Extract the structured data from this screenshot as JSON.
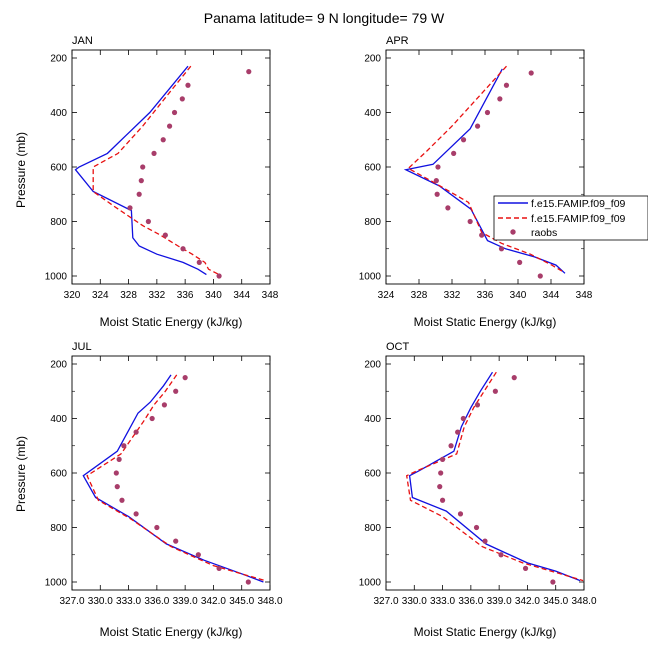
{
  "title": "Panama  latitude= 9 N longitude= 79 W",
  "legend": {
    "entries": [
      {
        "label": "f.e15.FAMIP.f09_f09",
        "style": "solid-blue-line"
      },
      {
        "label": "f.e15.FAMIP.f09_f09",
        "style": "dashed-red-line"
      },
      {
        "label": "raobs",
        "style": "purple-dot"
      }
    ]
  },
  "colors": {
    "model_solid": "#1010e0",
    "model_dashed": "#e81010",
    "raobs": "#a83d6a"
  },
  "chart_data": [
    {
      "type": "line",
      "panel": "JAN",
      "title": "JAN",
      "xlabel": "Moist Static Energy (kJ/kg)",
      "ylabel": "Pressure (mb)",
      "xlim": [
        320,
        348
      ],
      "ylim": [
        200,
        1000
      ],
      "y_inverted": true,
      "xticks": [
        320,
        324,
        328,
        332,
        336,
        340,
        344,
        348
      ],
      "xtick_labels": [
        "320",
        "324",
        "328",
        "332",
        "336",
        "340",
        "344",
        "348"
      ],
      "yticks": [
        200,
        400,
        600,
        800,
        1000
      ],
      "ytick_labels": [
        "200",
        "400",
        "600",
        "800",
        "1000"
      ],
      "series": [
        {
          "name": "f.e15.FAMIP.f09_f09",
          "style": "solid",
          "points": [
            [
              336.4,
              230
            ],
            [
              331,
              400
            ],
            [
              325,
              550
            ],
            [
              321,
              600
            ],
            [
              320.5,
              610
            ],
            [
              323,
              690
            ],
            [
              328.4,
              760
            ],
            [
              328.6,
              860
            ],
            [
              329.5,
              890
            ],
            [
              332,
              920
            ],
            [
              335.7,
              950
            ],
            [
              337.8,
              975
            ],
            [
              339,
              995
            ]
          ]
        },
        {
          "name": "f.e15.FAMIP.f09_f09",
          "style": "dashed",
          "points": [
            [
              336.8,
              230
            ],
            [
              334,
              320
            ],
            [
              330,
              450
            ],
            [
              326.5,
              550
            ],
            [
              323,
              600
            ],
            [
              323,
              690
            ],
            [
              326,
              745
            ],
            [
              330,
              815
            ],
            [
              332.5,
              850
            ],
            [
              335,
              890
            ],
            [
              337,
              920
            ],
            [
              338.8,
              950
            ],
            [
              339.3,
              975
            ],
            [
              340.8,
              995
            ]
          ]
        },
        {
          "name": "raobs",
          "style": "dots",
          "points": [
            [
              345,
              250
            ],
            [
              336.4,
              300
            ],
            [
              335.6,
              350
            ],
            [
              334.5,
              400
            ],
            [
              333.8,
              450
            ],
            [
              332.9,
              500
            ],
            [
              331.6,
              550
            ],
            [
              330,
              600
            ],
            [
              329.8,
              650
            ],
            [
              329.5,
              700
            ],
            [
              328.2,
              750
            ],
            [
              330.8,
              800
            ],
            [
              333.2,
              850
            ],
            [
              335.7,
              900
            ],
            [
              338,
              950
            ],
            [
              340.8,
              1000
            ]
          ]
        }
      ]
    },
    {
      "type": "line",
      "panel": "APR",
      "title": "APR",
      "xlabel": "Moist Static Energy (kJ/kg)",
      "ylabel": "",
      "xlim": [
        324,
        348
      ],
      "ylim": [
        200,
        1000
      ],
      "y_inverted": true,
      "xticks": [
        324,
        328,
        332,
        336,
        340,
        344,
        348
      ],
      "xtick_labels": [
        "324",
        "328",
        "332",
        "336",
        "340",
        "344",
        "348"
      ],
      "yticks": [
        200,
        400,
        600,
        800,
        1000
      ],
      "ytick_labels": [
        "200",
        "400",
        "600",
        "800",
        "1000"
      ],
      "series": [
        {
          "name": "f.e15.FAMIP.f09_f09",
          "style": "solid",
          "points": [
            [
              338.1,
              240
            ],
            [
              334.2,
              460
            ],
            [
              329.7,
              590
            ],
            [
              326.4,
              610
            ],
            [
              330.5,
              670
            ],
            [
              334.3,
              755
            ],
            [
              336.3,
              870
            ],
            [
              338.5,
              900
            ],
            [
              342,
              930
            ],
            [
              344.6,
              960
            ],
            [
              345.7,
              990
            ]
          ]
        },
        {
          "name": "f.e15.FAMIP.f09_f09",
          "style": "dashed",
          "points": [
            [
              338.6,
              230
            ],
            [
              332,
              450
            ],
            [
              329,
              540
            ],
            [
              326.7,
              605
            ],
            [
              330,
              660
            ],
            [
              334,
              730
            ],
            [
              335.6,
              840
            ],
            [
              338,
              880
            ],
            [
              341.5,
              920
            ],
            [
              344.1,
              960
            ],
            [
              345.5,
              985
            ]
          ]
        },
        {
          "name": "raobs",
          "style": "dots",
          "points": [
            [
              341.6,
              255
            ],
            [
              338.6,
              300
            ],
            [
              337.8,
              350
            ],
            [
              336.3,
              400
            ],
            [
              335.1,
              450
            ],
            [
              333.4,
              500
            ],
            [
              332.2,
              550
            ],
            [
              330.3,
              600
            ],
            [
              330.1,
              650
            ],
            [
              330.2,
              700
            ],
            [
              331.5,
              750
            ],
            [
              334.2,
              800
            ],
            [
              335.6,
              850
            ],
            [
              338,
              900
            ],
            [
              340.2,
              950
            ],
            [
              342.7,
              1000
            ]
          ]
        }
      ]
    },
    {
      "type": "line",
      "panel": "JUL",
      "title": "JUL",
      "xlabel": "Moist Static Energy (kJ/kg)",
      "ylabel": "Pressure (mb)",
      "xlim": [
        327,
        348
      ],
      "ylim": [
        200,
        1000
      ],
      "y_inverted": true,
      "xticks": [
        327,
        330,
        333,
        336,
        339,
        342,
        345,
        348
      ],
      "xtick_labels": [
        "327.0",
        "330.0",
        "333.0",
        "336.0",
        "339.0",
        "342.0",
        "345.0",
        "348.0"
      ],
      "yticks": [
        200,
        400,
        600,
        800,
        1000
      ],
      "ytick_labels": [
        "200",
        "400",
        "600",
        "800",
        "1000"
      ],
      "series": [
        {
          "name": "f.e15.FAMIP.f09_f09",
          "style": "solid",
          "points": [
            [
              337.5,
              240
            ],
            [
              336.7,
              280
            ],
            [
              335.3,
              340
            ],
            [
              334,
              380
            ],
            [
              331.8,
              520
            ],
            [
              328.2,
              610
            ],
            [
              329.5,
              690
            ],
            [
              333,
              760
            ],
            [
              337,
              860
            ],
            [
              341,
              920
            ],
            [
              345,
              970
            ],
            [
              347.3,
              1000
            ]
          ]
        },
        {
          "name": "f.e15.FAMIP.f09_f09",
          "style": "dashed",
          "points": [
            [
              338.1,
              240
            ],
            [
              336.9,
              300
            ],
            [
              335.7,
              350
            ],
            [
              334.6,
              410
            ],
            [
              332.2,
              530
            ],
            [
              328.6,
              610
            ],
            [
              329.8,
              700
            ],
            [
              333.3,
              770
            ],
            [
              337.5,
              870
            ],
            [
              342,
              940
            ],
            [
              345.5,
              975
            ],
            [
              347.5,
              995
            ]
          ]
        },
        {
          "name": "raobs",
          "style": "dots",
          "points": [
            [
              339,
              250
            ],
            [
              338,
              300
            ],
            [
              336.8,
              350
            ],
            [
              335.5,
              400
            ],
            [
              333.8,
              450
            ],
            [
              332.5,
              500
            ],
            [
              332,
              550
            ],
            [
              331.7,
              600
            ],
            [
              331.8,
              650
            ],
            [
              332.3,
              700
            ],
            [
              333.8,
              750
            ],
            [
              336,
              800
            ],
            [
              338,
              850
            ],
            [
              340.4,
              900
            ],
            [
              342.6,
              950
            ],
            [
              345.7,
              1000
            ]
          ]
        }
      ]
    },
    {
      "type": "line",
      "panel": "OCT",
      "title": "OCT",
      "xlabel": "Moist Static Energy (kJ/kg)",
      "ylabel": "",
      "xlim": [
        327,
        348
      ],
      "ylim": [
        200,
        1000
      ],
      "y_inverted": true,
      "xticks": [
        327,
        330,
        333,
        336,
        339,
        342,
        345,
        348
      ],
      "xtick_labels": [
        "327.0",
        "330.0",
        "333.0",
        "336.0",
        "339.0",
        "342.0",
        "345.0",
        "348.0"
      ],
      "yticks": [
        200,
        400,
        600,
        800,
        1000
      ],
      "ytick_labels": [
        "200",
        "400",
        "600",
        "800",
        "1000"
      ],
      "series": [
        {
          "name": "f.e15.FAMIP.f09_f09",
          "style": "solid",
          "points": [
            [
              338.3,
              230
            ],
            [
              337,
              300
            ],
            [
              336,
              360
            ],
            [
              335,
              430
            ],
            [
              334.2,
              520
            ],
            [
              330.6,
              590
            ],
            [
              329.5,
              610
            ],
            [
              329.8,
              690
            ],
            [
              333.4,
              740
            ],
            [
              337.6,
              860
            ],
            [
              342,
              930
            ],
            [
              345,
              960
            ],
            [
              347.6,
              995
            ]
          ]
        },
        {
          "name": "f.e15.FAMIP.f09_f09",
          "style": "dashed",
          "points": [
            [
              338.7,
              230
            ],
            [
              337.4,
              300
            ],
            [
              336.3,
              360
            ],
            [
              335.3,
              430
            ],
            [
              334.5,
              530
            ],
            [
              330.4,
              590
            ],
            [
              329.2,
              610
            ],
            [
              329.6,
              700
            ],
            [
              333,
              760
            ],
            [
              337.2,
              870
            ],
            [
              341.5,
              930
            ],
            [
              345.5,
              970
            ],
            [
              347.9,
              995
            ]
          ]
        },
        {
          "name": "raobs",
          "style": "dots",
          "points": [
            [
              340.6,
              250
            ],
            [
              338.6,
              300
            ],
            [
              336.7,
              350
            ],
            [
              335.2,
              400
            ],
            [
              334.6,
              450
            ],
            [
              333.9,
              500
            ],
            [
              333,
              550
            ],
            [
              332.8,
              600
            ],
            [
              332.7,
              650
            ],
            [
              333,
              700
            ],
            [
              334.9,
              750
            ],
            [
              336.6,
              800
            ],
            [
              337.5,
              850
            ],
            [
              339.2,
              900
            ],
            [
              341.8,
              950
            ],
            [
              344.7,
              1000
            ]
          ]
        }
      ]
    }
  ]
}
